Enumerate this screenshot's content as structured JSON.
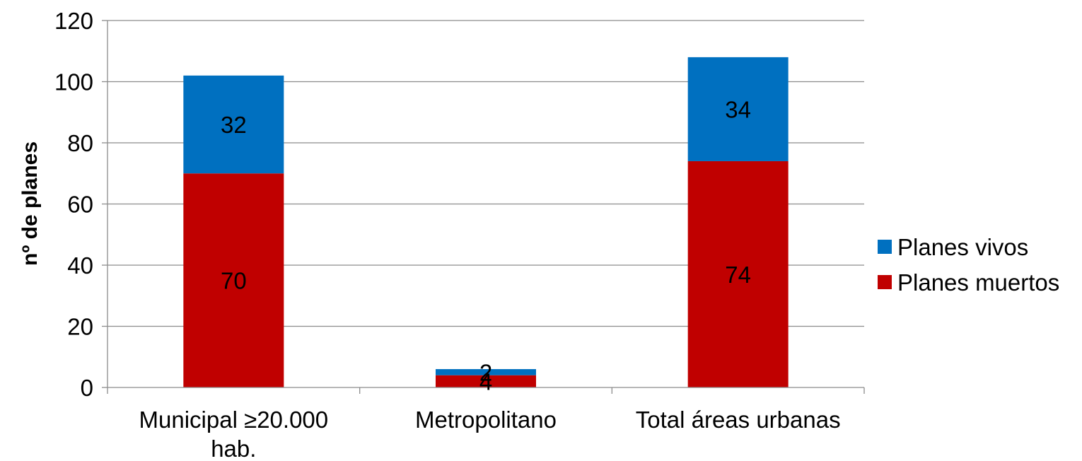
{
  "chart_data": {
    "type": "bar",
    "stacked": true,
    "categories": [
      [
        "Municipal ≥20.000",
        "hab."
      ],
      [
        "Metropolitano"
      ],
      [
        "Total áreas urbanas"
      ]
    ],
    "series": [
      {
        "name": "Planes muertos",
        "color": "#C00000",
        "values": [
          70,
          4,
          74
        ]
      },
      {
        "name": "Planes vivos",
        "color": "#0070C0",
        "values": [
          32,
          2,
          34
        ]
      }
    ],
    "title": "",
    "xlabel": "",
    "ylabel": "nº de planes",
    "ylim": [
      0,
      120
    ],
    "yticks": [
      0,
      20,
      40,
      60,
      80,
      100,
      120
    ],
    "grid": true,
    "legend": {
      "position": "right",
      "order": [
        "Planes vivos",
        "Planes muertos"
      ]
    }
  }
}
